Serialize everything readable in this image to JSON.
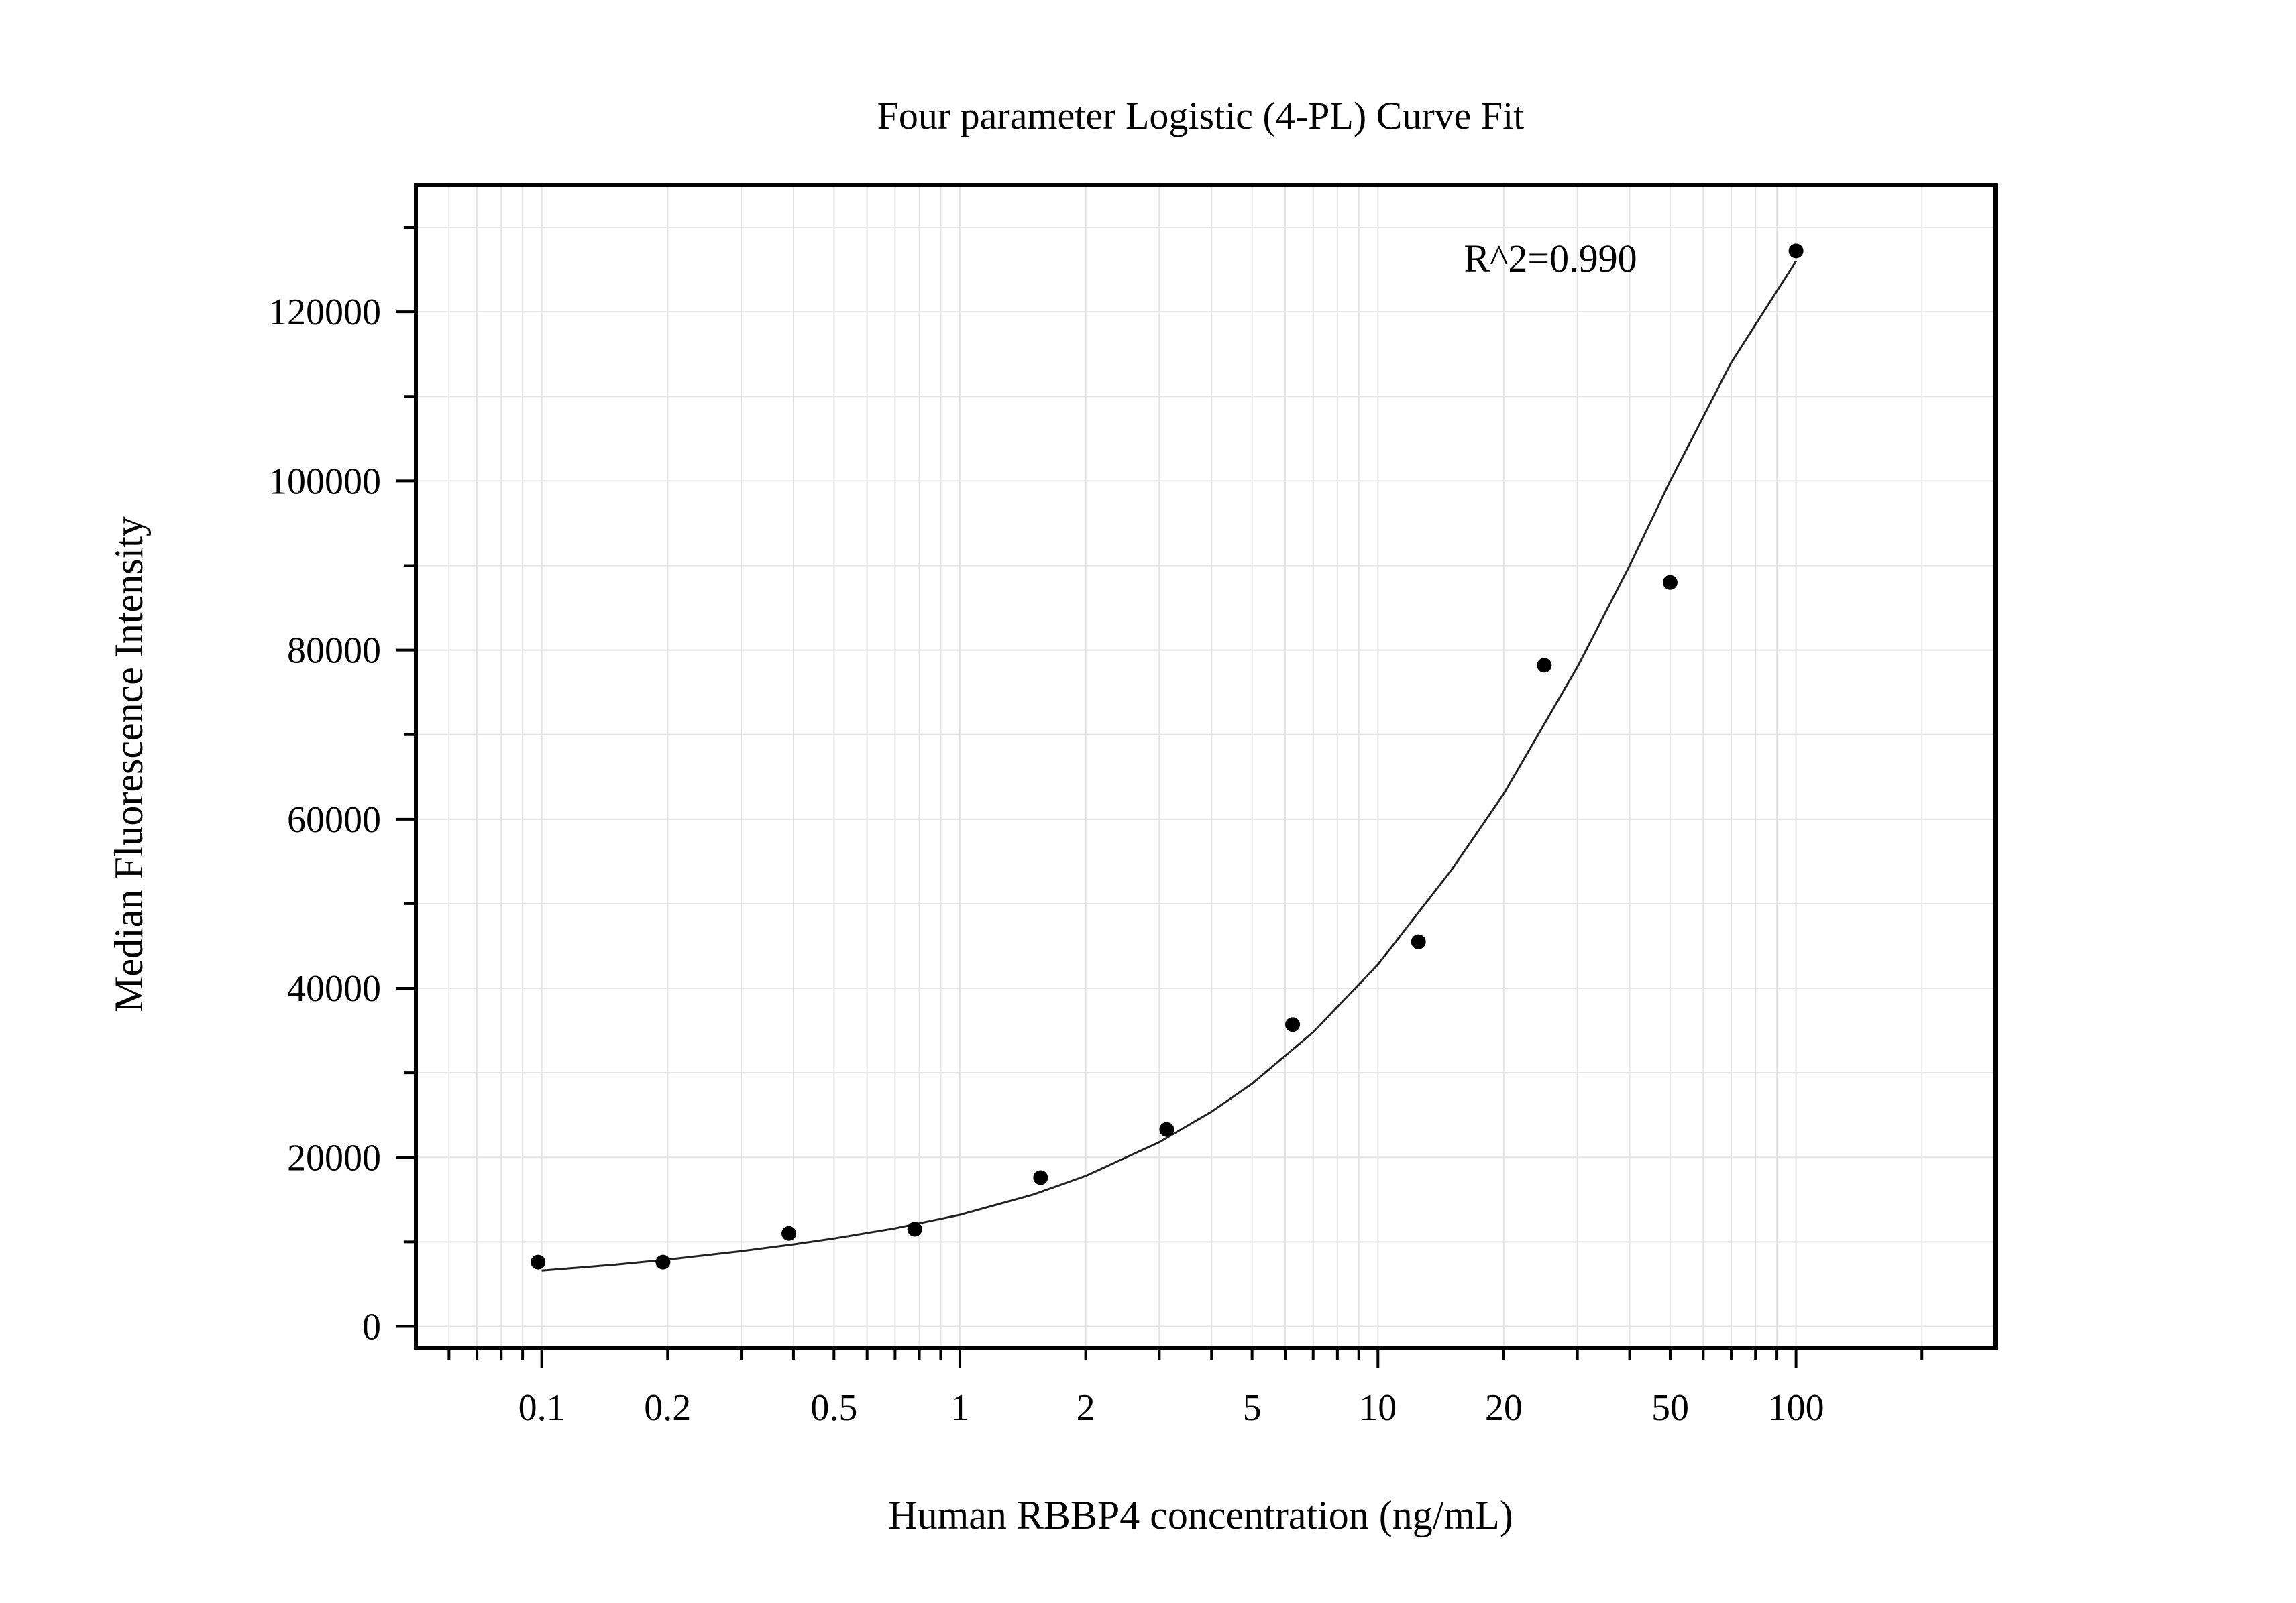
{
  "chart_data": {
    "type": "scatter",
    "title": "Four parameter Logistic (4-PL) Curve Fit",
    "xlabel": "Human RBBP4 concentration (ng/mL)",
    "ylabel": "Median Fluorescence Intensity",
    "x_scale": "log",
    "xlim": [
      0.05,
      300
    ],
    "ylim": [
      -2500,
      135000
    ],
    "x_ticks": [
      {
        "value": 0.1,
        "label": "0.1"
      },
      {
        "value": 0.2,
        "label": "0.2"
      },
      {
        "value": 0.5,
        "label": "0.5"
      },
      {
        "value": 1,
        "label": "1"
      },
      {
        "value": 2,
        "label": "2"
      },
      {
        "value": 5,
        "label": "5"
      },
      {
        "value": 10,
        "label": "10"
      },
      {
        "value": 20,
        "label": "20"
      },
      {
        "value": 50,
        "label": "50"
      },
      {
        "value": 100,
        "label": "100"
      }
    ],
    "y_ticks": [
      {
        "value": 0,
        "label": "0"
      },
      {
        "value": 20000,
        "label": "20000"
      },
      {
        "value": 40000,
        "label": "40000"
      },
      {
        "value": 60000,
        "label": "60000"
      },
      {
        "value": 80000,
        "label": "80000"
      },
      {
        "value": 100000,
        "label": "100000"
      },
      {
        "value": 120000,
        "label": "120000"
      }
    ],
    "grid": true,
    "points": {
      "x": [
        0.098,
        0.195,
        0.39,
        0.78,
        1.56,
        3.125,
        6.25,
        12.5,
        25,
        50,
        100
      ],
      "y": [
        7600,
        7600,
        11000,
        11500,
        17600,
        23300,
        35700,
        45500,
        78200,
        88000,
        127200
      ]
    },
    "fit_curve": {
      "x": [
        0.1,
        0.15,
        0.2,
        0.3,
        0.4,
        0.5,
        0.7,
        1,
        1.5,
        2,
        3,
        4,
        5,
        7,
        10,
        15,
        20,
        30,
        40,
        50,
        70,
        100
      ],
      "y": [
        6600,
        7300,
        7900,
        8900,
        9700,
        10400,
        11600,
        13200,
        15600,
        17800,
        21800,
        25400,
        28700,
        34800,
        42800,
        54000,
        63000,
        78000,
        90000,
        100000,
        114000,
        126000
      ]
    },
    "annotations": [
      {
        "text": "R^2=0.990",
        "x": 33,
        "y": 127000
      }
    ]
  }
}
